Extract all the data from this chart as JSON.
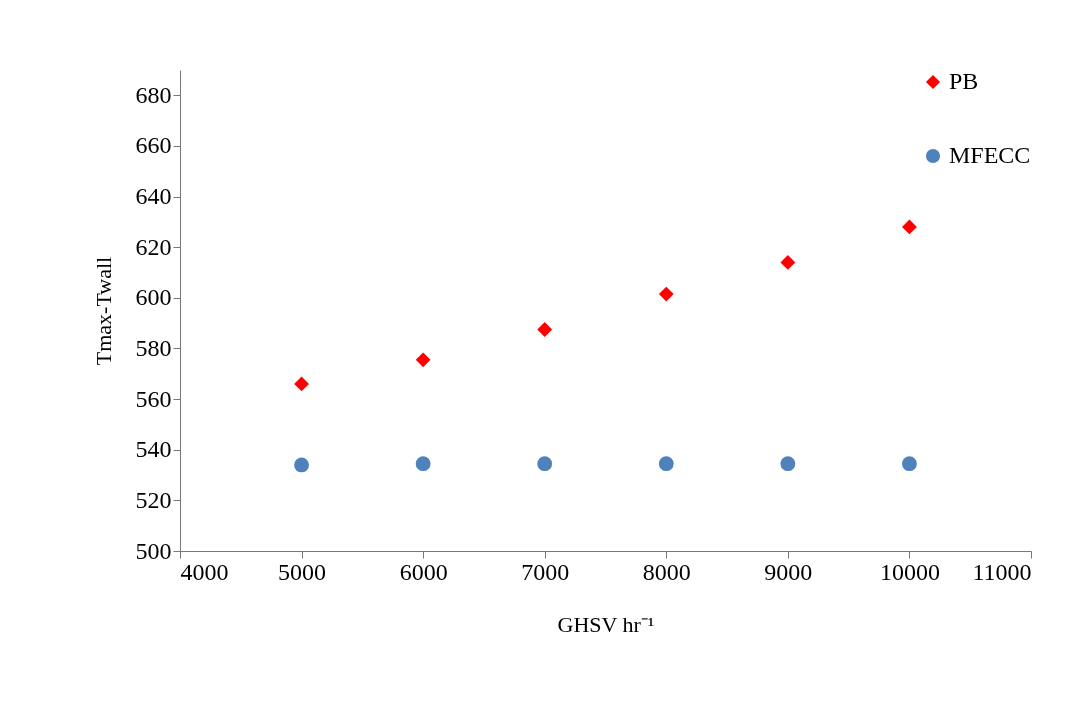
{
  "chart_data": {
    "type": "scatter",
    "xlabel": "GHSV hr⁻¹",
    "ylabel": "Tmax-Twall",
    "x": [
      5000,
      6000,
      7000,
      8000,
      9000,
      10000
    ],
    "series": [
      {
        "name": "PB",
        "color": "#ff0000",
        "marker": "diamond",
        "values": [
          566,
          575.5,
          587.5,
          601.5,
          614,
          628
        ]
      },
      {
        "name": "MFECC",
        "color": "#4f81bd",
        "marker": "circle",
        "values": [
          534,
          534.5,
          534.5,
          534.5,
          534.5,
          534.5
        ]
      }
    ],
    "xlim": [
      4000,
      11000
    ],
    "xticks": [
      4000,
      5000,
      6000,
      7000,
      8000,
      9000,
      10000,
      11000
    ],
    "ylim": [
      500,
      690
    ],
    "yticks": [
      500,
      520,
      540,
      560,
      580,
      600,
      620,
      640,
      660,
      680
    ],
    "grid": false,
    "legend": "top right"
  }
}
